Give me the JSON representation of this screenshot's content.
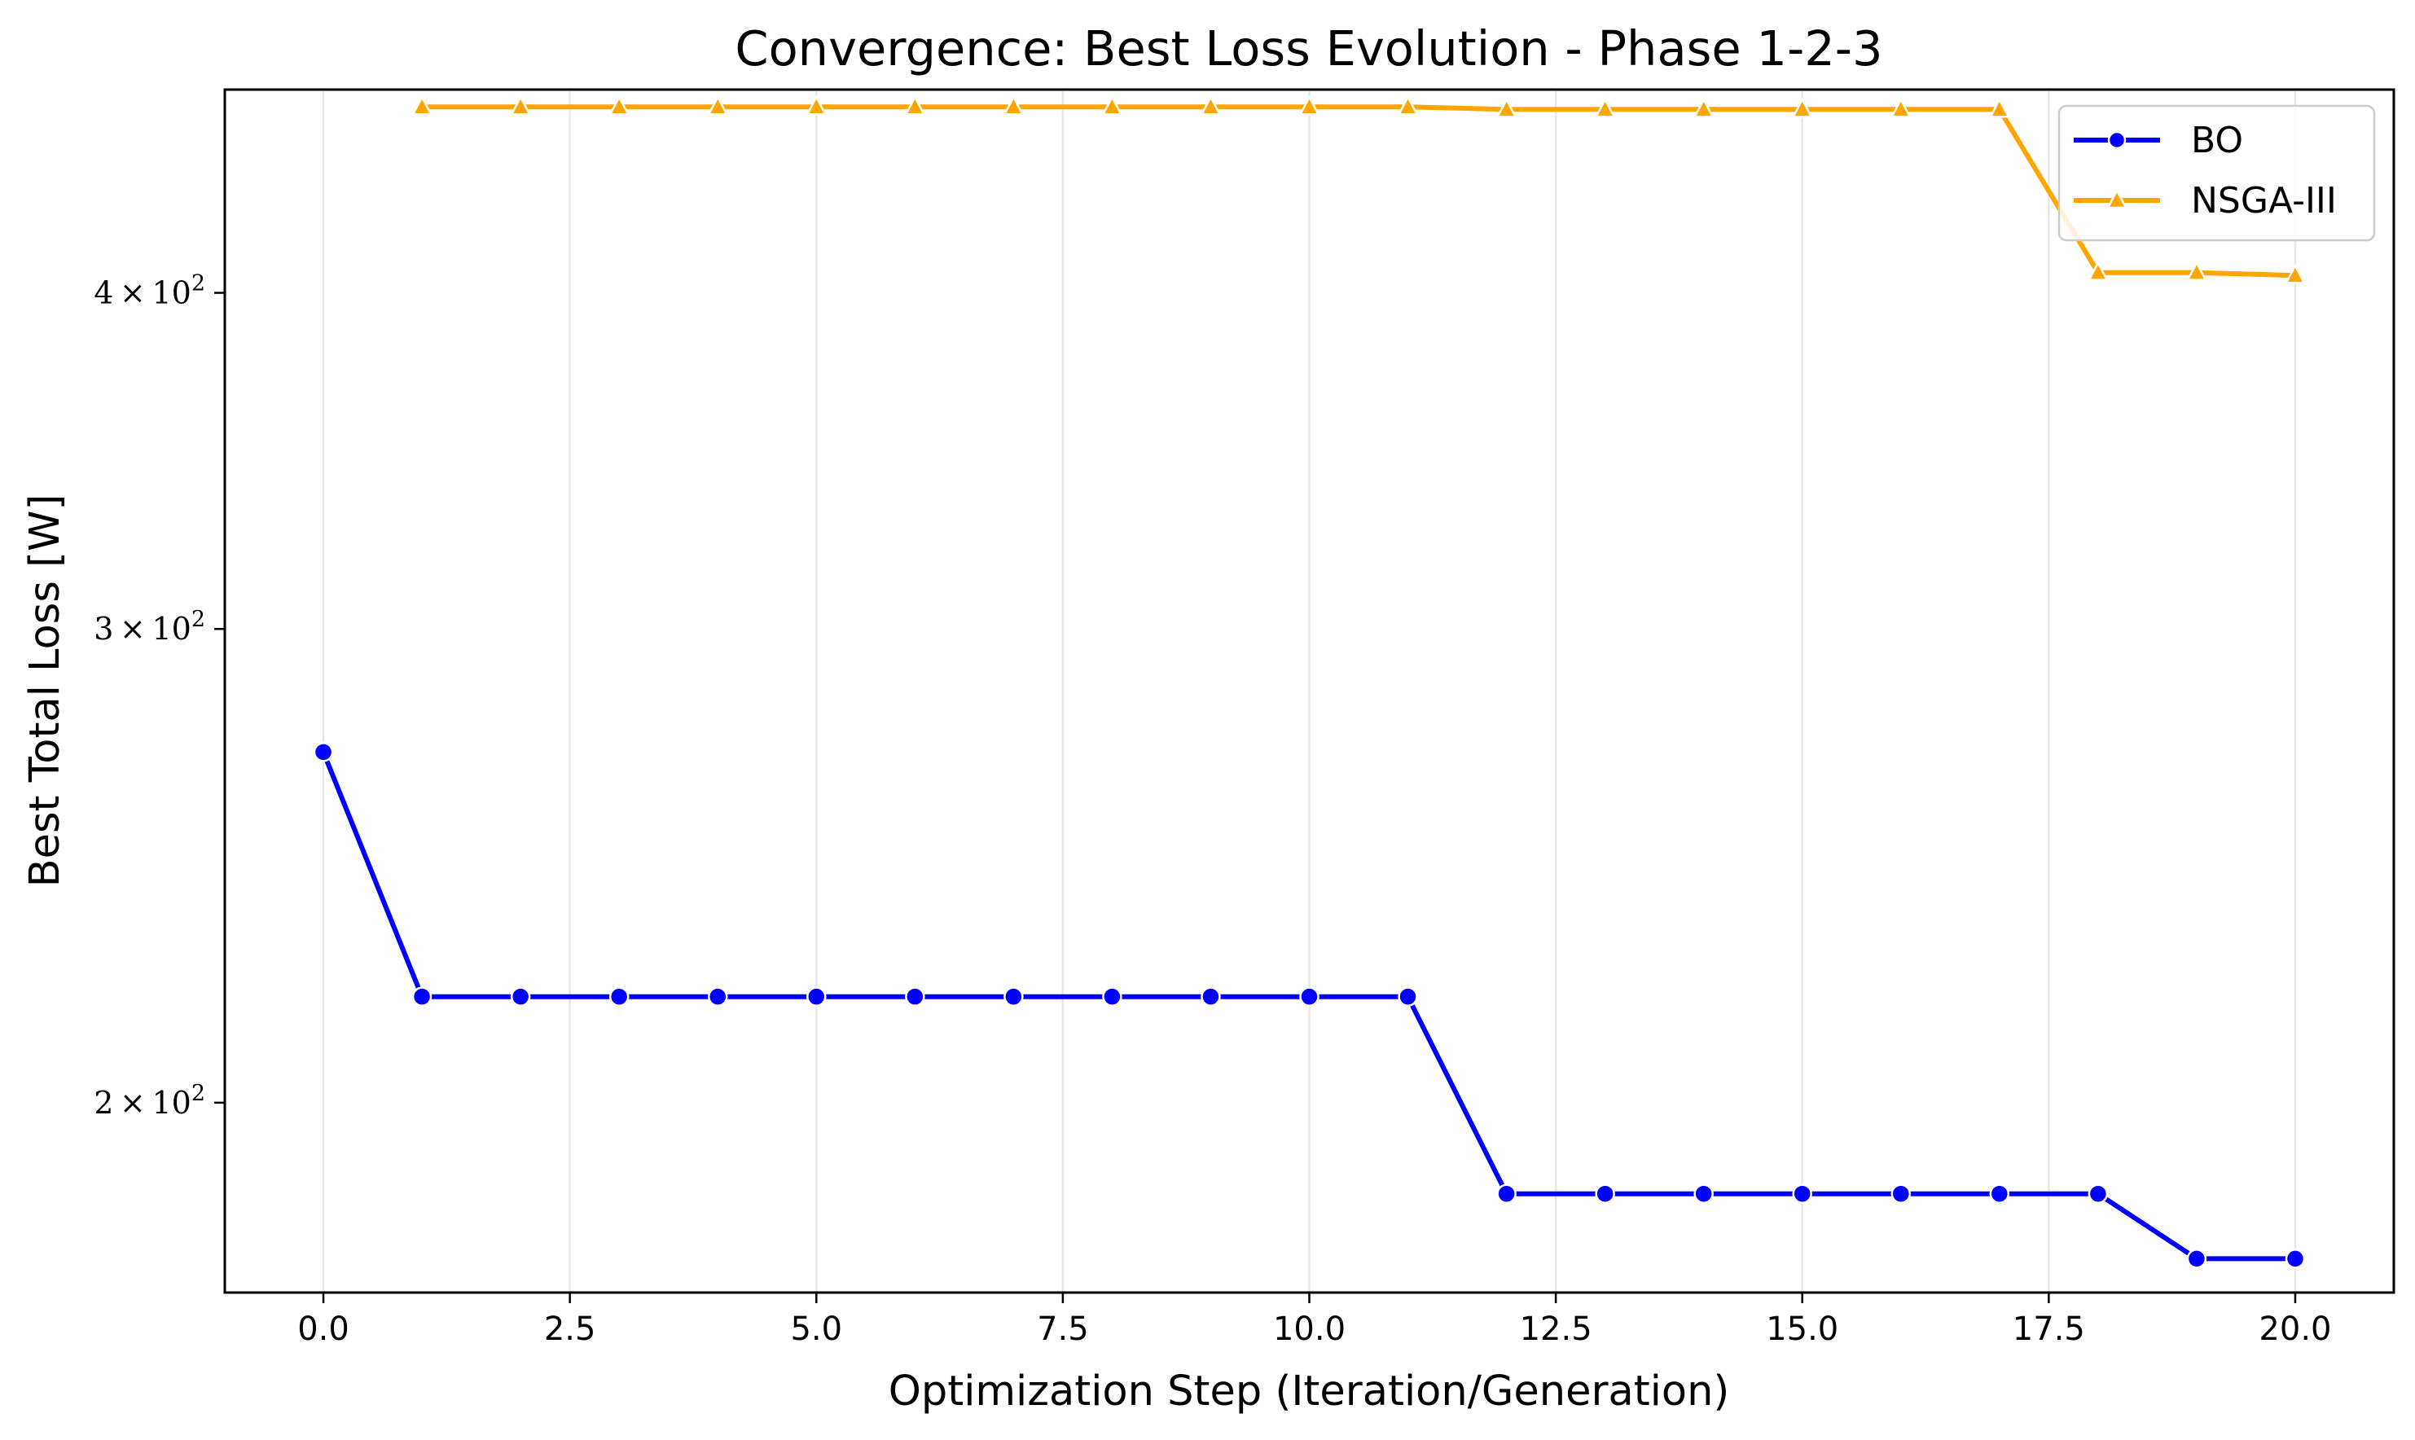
{
  "chart_data": {
    "type": "line",
    "title": "Convergence: Best Loss Evolution - Phase 1-2-3",
    "xlabel": "Optimization Step (Iteration/Generation)",
    "ylabel": "Best Total Loss [W]",
    "xlim": [
      -1.0,
      21.0
    ],
    "ylim": [
      170,
      476
    ],
    "yscale": "log",
    "grid": "x-only",
    "legend_position": "top-right",
    "xticks": [
      {
        "value": 0.0,
        "label": "0.0"
      },
      {
        "value": 2.5,
        "label": "2.5"
      },
      {
        "value": 5.0,
        "label": "5.0"
      },
      {
        "value": 7.5,
        "label": "7.5"
      },
      {
        "value": 10.0,
        "label": "10.0"
      },
      {
        "value": 12.5,
        "label": "12.5"
      },
      {
        "value": 15.0,
        "label": "15.0"
      },
      {
        "value": 17.5,
        "label": "17.5"
      },
      {
        "value": 20.0,
        "label": "20.0"
      }
    ],
    "yticks": [
      {
        "value": 200,
        "mantissa": "2",
        "base": "10",
        "exp": "2"
      },
      {
        "value": 300,
        "mantissa": "3",
        "base": "10",
        "exp": "2"
      },
      {
        "value": 400,
        "mantissa": "4",
        "base": "10",
        "exp": "2"
      }
    ],
    "series": [
      {
        "name": "BO",
        "color": "#0000ff",
        "marker": "circle",
        "x": [
          0,
          1,
          2,
          3,
          4,
          5,
          6,
          7,
          8,
          9,
          10,
          11,
          12,
          13,
          14,
          15,
          16,
          17,
          18,
          19,
          20
        ],
        "y": [
          270,
          219,
          219,
          219,
          219,
          219,
          219,
          219,
          219,
          219,
          219,
          219,
          185,
          185,
          185,
          185,
          185,
          185,
          185,
          175,
          175
        ]
      },
      {
        "name": "NSGA-III",
        "color": "#ffa500",
        "marker": "triangle",
        "x": [
          1,
          2,
          3,
          4,
          5,
          6,
          7,
          8,
          9,
          10,
          11,
          12,
          13,
          14,
          15,
          16,
          17,
          18,
          19,
          20
        ],
        "y": [
          469,
          469,
          469,
          469,
          469,
          469,
          469,
          469,
          469,
          469,
          469,
          468,
          468,
          468,
          468,
          468,
          468,
          407,
          407,
          406
        ]
      }
    ]
  }
}
